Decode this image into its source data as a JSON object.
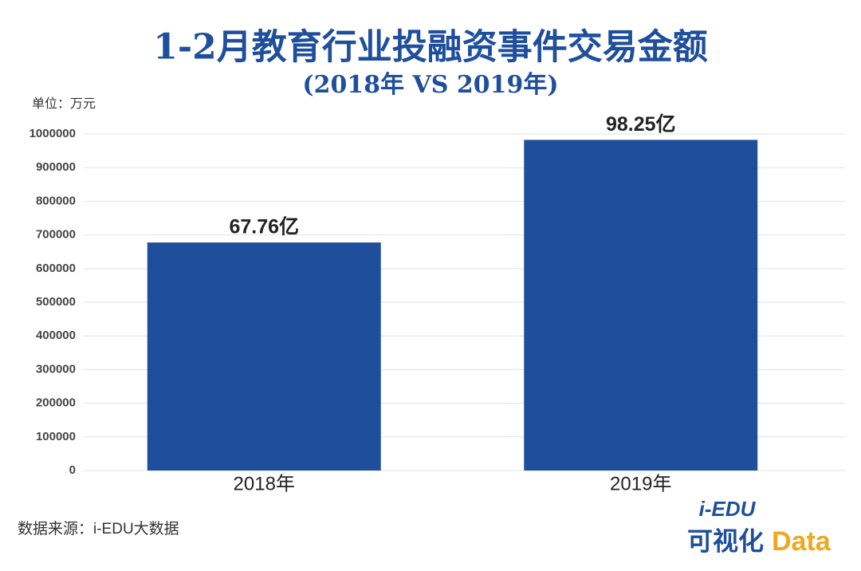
{
  "chart_data": {
    "type": "bar",
    "title": "1-2月教育行业投融资事件交易金额",
    "subtitle": "(2018年 VS 2019年)",
    "unit_label": "单位：万元",
    "categories": [
      "2018年",
      "2019年"
    ],
    "values": [
      677600,
      982500
    ],
    "value_labels": [
      "67.76亿",
      "98.25亿"
    ],
    "color": "#1f4f9c",
    "ylim": [
      0,
      1000000
    ],
    "yticks": [
      0,
      100000,
      200000,
      300000,
      400000,
      500000,
      600000,
      700000,
      800000,
      900000,
      1000000
    ],
    "grid": true,
    "source": "数据来源：i-EDU大数据"
  },
  "logo": {
    "brand": "i-EDU",
    "caption": "可视化",
    "word": "Data"
  }
}
